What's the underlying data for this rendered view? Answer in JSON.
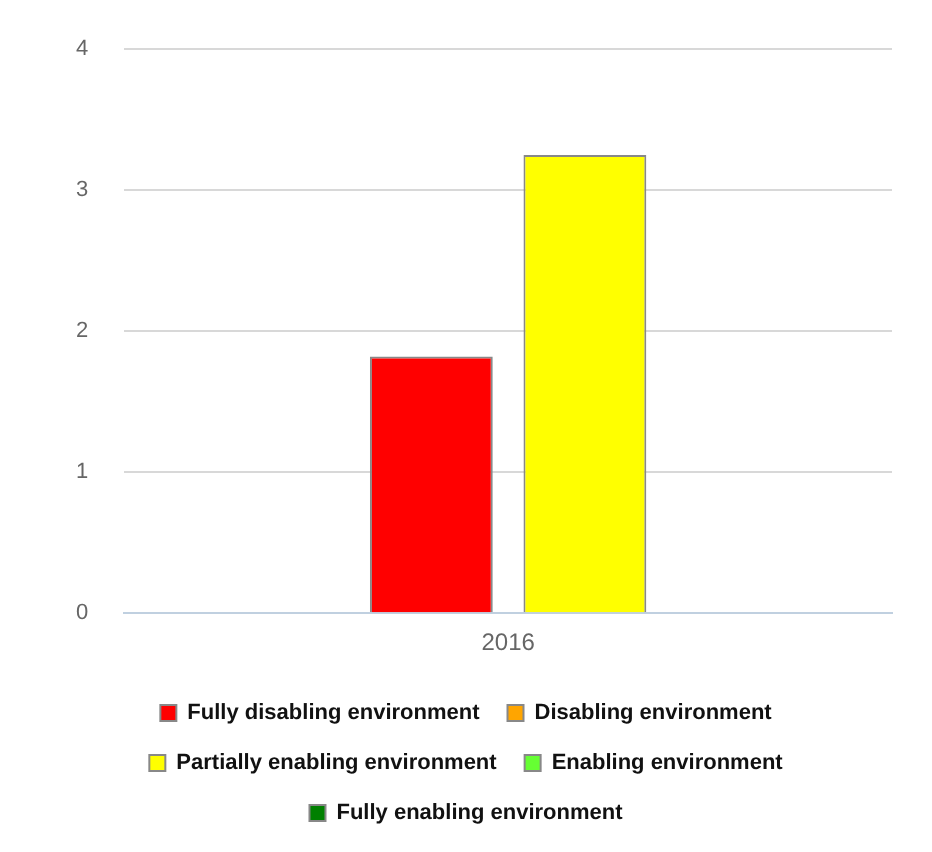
{
  "chart_data": {
    "type": "bar",
    "categories": [
      "2016"
    ],
    "series": [
      {
        "name": "Fully disabling environment",
        "color": "#ff0000",
        "values": [
          1.82
        ]
      },
      {
        "name": "Disabling environment",
        "color": "#ffa500",
        "values": [
          null
        ]
      },
      {
        "name": "Partially enabling environment",
        "color": "#ffff00",
        "values": [
          3.25
        ]
      },
      {
        "name": "Enabling environment",
        "color": "#66ff33",
        "values": [
          null
        ]
      },
      {
        "name": "Fully enabling environment",
        "color": "#008000",
        "values": [
          null
        ]
      }
    ],
    "ylim": [
      0,
      4
    ],
    "yticks": [
      0,
      1,
      2,
      3,
      4
    ],
    "grid": "y",
    "legend": "bottom"
  }
}
